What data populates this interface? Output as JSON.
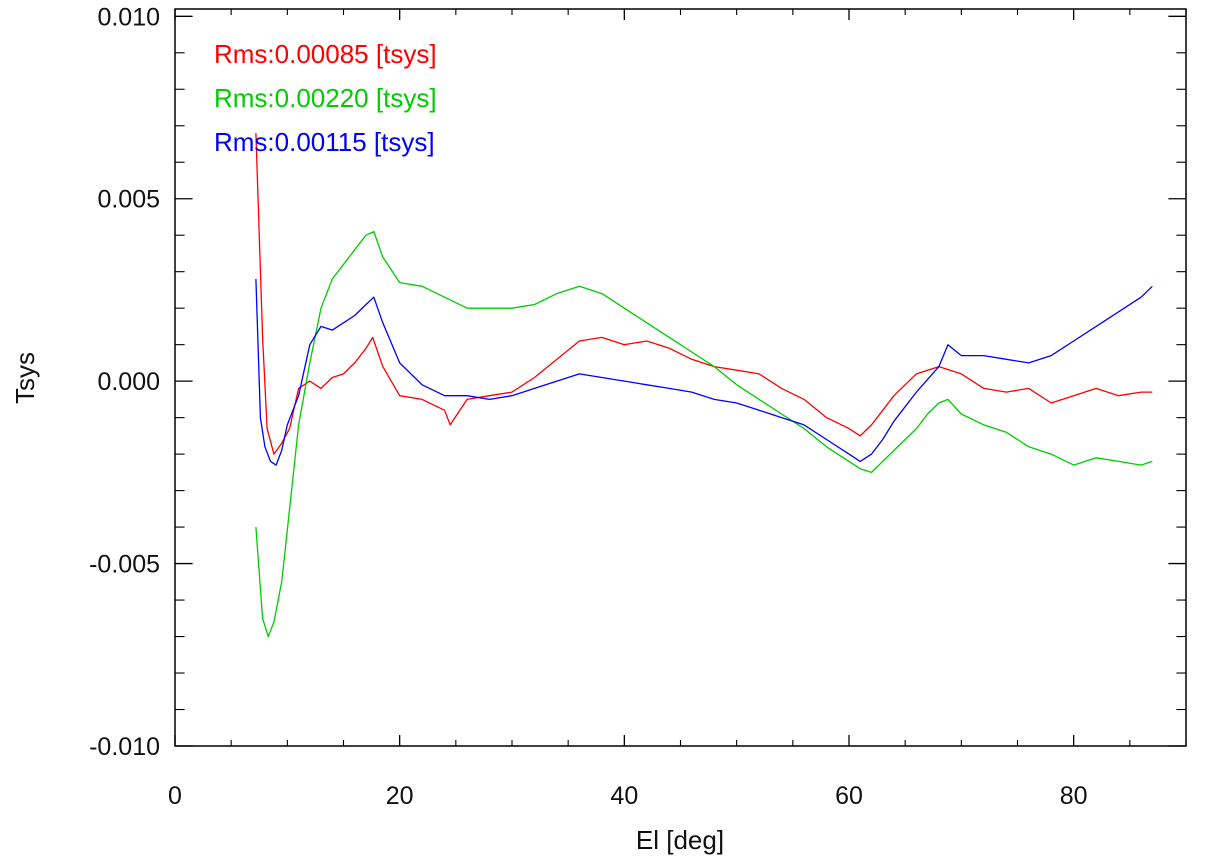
{
  "chart_data": {
    "type": "line",
    "title": "",
    "xlabel": "El [deg]",
    "ylabel": "Tsys",
    "xlim": [
      0,
      90
    ],
    "ylim": [
      -0.01,
      0.0102
    ],
    "x_ticks": [
      0,
      20,
      40,
      60,
      80
    ],
    "x_tick_labels": [
      "0",
      "20",
      "40",
      "60",
      "80"
    ],
    "y_ticks": [
      -0.01,
      -0.005,
      0.0,
      0.005,
      0.01
    ],
    "y_tick_labels": [
      "-0.010",
      "-0.005",
      "0.000",
      "0.005",
      "0.010"
    ],
    "x_minor_step": 5,
    "y_minor_step": 0.001,
    "grid": false,
    "legend_position": "top-left",
    "annotations": [
      {
        "text": "Rms:0.00085 [tsys]",
        "color": "#ff0000"
      },
      {
        "text": "Rms:0.00220 [tsys]",
        "color": "#00cc00"
      },
      {
        "text": "Rms:0.00115 [tsys]",
        "color": "#0000ff"
      }
    ],
    "series": [
      {
        "color": "#ff0000",
        "x": [
          7.2,
          7.8,
          8.2,
          8.8,
          9.5,
          10.2,
          11,
          12,
          13,
          14,
          15,
          16,
          17,
          17.6,
          18.5,
          20,
          22,
          24,
          24.5,
          26,
          28,
          30,
          32,
          34,
          36,
          38,
          40,
          42,
          44,
          46,
          48,
          50,
          52,
          54,
          56,
          58,
          60,
          61,
          62,
          63,
          64,
          66,
          68,
          70,
          72,
          74,
          76,
          78,
          80,
          82,
          84,
          86,
          87
        ],
        "y": [
          0.0068,
          0.0012,
          -0.0013,
          -0.002,
          -0.0017,
          -0.0013,
          -0.0002,
          0.0,
          -0.0002,
          0.0001,
          0.0002,
          0.0005,
          0.0009,
          0.0012,
          0.0004,
          -0.0004,
          -0.0005,
          -0.0008,
          -0.0012,
          -0.0005,
          -0.0004,
          -0.0003,
          0.0001,
          0.0006,
          0.0011,
          0.0012,
          0.001,
          0.0011,
          0.0009,
          0.0006,
          0.0004,
          0.0003,
          0.0002,
          -0.0002,
          -0.0005,
          -0.001,
          -0.0013,
          -0.0015,
          -0.0012,
          -0.0008,
          -0.0004,
          0.0002,
          0.0004,
          0.0002,
          -0.0002,
          -0.0003,
          -0.0002,
          -0.0006,
          -0.0004,
          -0.0002,
          -0.0004,
          -0.0003,
          -0.0003
        ]
      },
      {
        "color": "#00cc00",
        "x": [
          7.2,
          7.8,
          8.3,
          8.8,
          9.5,
          10.2,
          11,
          12,
          13,
          14,
          15,
          16,
          17,
          17.7,
          18.5,
          20,
          22,
          24,
          26,
          28,
          30,
          32,
          34,
          36,
          38,
          40,
          42,
          44,
          46,
          48,
          50,
          52,
          54,
          56,
          58,
          60,
          61,
          62,
          63,
          64,
          65,
          66,
          67,
          68,
          68.8,
          70,
          72,
          74,
          76,
          78,
          80,
          82,
          84,
          86,
          87
        ],
        "y": [
          -0.004,
          -0.0065,
          -0.007,
          -0.0066,
          -0.0055,
          -0.0035,
          -0.0012,
          0.0005,
          0.002,
          0.0028,
          0.0032,
          0.0036,
          0.004,
          0.0041,
          0.0034,
          0.0027,
          0.0026,
          0.0023,
          0.002,
          0.002,
          0.002,
          0.0021,
          0.0024,
          0.0026,
          0.0024,
          0.002,
          0.0016,
          0.0012,
          0.0008,
          0.0004,
          -0.0001,
          -0.0005,
          -0.0009,
          -0.0013,
          -0.0018,
          -0.0022,
          -0.0024,
          -0.0025,
          -0.0022,
          -0.0019,
          -0.0016,
          -0.0013,
          -0.0009,
          -0.0006,
          -0.0005,
          -0.0009,
          -0.0012,
          -0.0014,
          -0.0018,
          -0.002,
          -0.0023,
          -0.0021,
          -0.0022,
          -0.0023,
          -0.0022
        ]
      },
      {
        "color": "#0000ff",
        "x": [
          7.2,
          7.6,
          8,
          8.5,
          9,
          9.5,
          10,
          10.5,
          11,
          11.5,
          12,
          13,
          14,
          15,
          16,
          17,
          17.7,
          18.5,
          20,
          22,
          24,
          26,
          28,
          30,
          32,
          34,
          36,
          38,
          40,
          42,
          44,
          46,
          48,
          50,
          52,
          54,
          56,
          58,
          60,
          61,
          62,
          63,
          64,
          66,
          68,
          68.8,
          70,
          72,
          74,
          76,
          78,
          80,
          82,
          84,
          86,
          87
        ],
        "y": [
          0.0028,
          -0.001,
          -0.0018,
          -0.0022,
          -0.0023,
          -0.0019,
          -0.0012,
          -0.0008,
          -0.0004,
          0.0003,
          0.001,
          0.0015,
          0.0014,
          0.0016,
          0.0018,
          0.0021,
          0.0023,
          0.0016,
          0.0005,
          -0.0001,
          -0.0004,
          -0.0004,
          -0.0005,
          -0.0004,
          -0.0002,
          0.0,
          0.0002,
          0.0001,
          0.0,
          -0.0001,
          -0.0002,
          -0.0003,
          -0.0005,
          -0.0006,
          -0.0008,
          -0.001,
          -0.0012,
          -0.0016,
          -0.002,
          -0.0022,
          -0.002,
          -0.0016,
          -0.0011,
          -0.0003,
          0.0004,
          0.001,
          0.0007,
          0.0007,
          0.0006,
          0.0005,
          0.0007,
          0.0011,
          0.0015,
          0.0019,
          0.0023,
          0.0026
        ]
      }
    ]
  }
}
